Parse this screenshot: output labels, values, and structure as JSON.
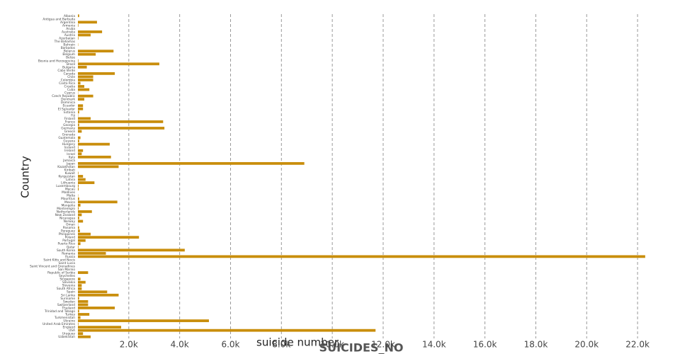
{
  "chart_data": {
    "type": "bar",
    "orientation": "horizontal",
    "x_label": "suicide number",
    "y_label": "Country",
    "annotation": "SUICIDES_NO",
    "color": "#c98e0c",
    "grid": true,
    "categories": [
      "Albania",
      "Antigua and Barbuda",
      "Argentina",
      "Armenia",
      "Aruba",
      "Australia",
      "Austria",
      "Azerbaijan",
      "The Bahamas",
      "Bahrain",
      "Barbados",
      "Belarus",
      "Belgium",
      "Belize",
      "Bosnia and Herzegovina",
      "Brazil",
      "Bulgaria",
      "Cabo Verde",
      "Canada",
      "Chile",
      "Colombia",
      "Costa Rica",
      "Croatia",
      "Cuba",
      "Cyprus",
      "Czech Republic",
      "Denmark",
      "Dominica",
      "Ecuador",
      "El Salvador",
      "Estonia",
      "Fiji",
      "Finland",
      "France",
      "Georgia",
      "Germany",
      "Greece",
      "Grenada",
      "Guatemala",
      "Guyana",
      "Hungary",
      "Iceland",
      "Ireland",
      "Israel",
      "Italy",
      "Jamaica",
      "Japan",
      "Kazakhstan",
      "Kiribati",
      "Kuwait",
      "Kyrgyzstan",
      "Latvia",
      "Lithuania",
      "Luxembourg",
      "Macau",
      "Maldives",
      "Malta",
      "Mauritius",
      "Mexico",
      "Mongolia",
      "Montenegro",
      "Netherlands",
      "New Zealand",
      "Nicaragua",
      "Norway",
      "Oman",
      "Panama",
      "Paraguay",
      "Philippines",
      "Poland",
      "Portugal",
      "Puerto Rico",
      "Qatar",
      "South Korea",
      "Romania",
      "Russia",
      "Saint Kitts and Nevis",
      "Saint Lucia",
      "Saint Vincent and Grenadines",
      "San Marino",
      "Republic of Serbia",
      "Seychelles",
      "Singapore",
      "Slovakia",
      "Slovenia",
      "South Africa",
      "Spain",
      "Sri Lanka",
      "Suriname",
      "Sweden",
      "Switzerland",
      "Thailand",
      "Trinidad and Tobago",
      "Turkey",
      "Turkmenistan",
      "Ukraine",
      "United Arab Emirates",
      "England",
      "USA",
      "Uruguay",
      "Uzbekistan"
    ],
    "values": [
      50,
      0,
      750,
      20,
      0,
      950,
      500,
      20,
      0,
      10,
      0,
      1400,
      700,
      0,
      20,
      3200,
      350,
      0,
      1450,
      600,
      600,
      100,
      250,
      450,
      10,
      600,
      250,
      0,
      200,
      200,
      50,
      10,
      500,
      3350,
      50,
      3400,
      150,
      0,
      100,
      50,
      1250,
      20,
      200,
      150,
      1300,
      0,
      8900,
      1600,
      0,
      20,
      200,
      300,
      650,
      30,
      30,
      0,
      10,
      50,
      1550,
      100,
      30,
      550,
      150,
      50,
      200,
      10,
      50,
      80,
      500,
      2400,
      300,
      100,
      20,
      4200,
      1100,
      22300,
      0,
      0,
      0,
      0,
      400,
      0,
      100,
      300,
      150,
      150,
      1150,
      1600,
      50,
      400,
      400,
      1450,
      50,
      450,
      100,
      5150,
      20,
      1700,
      11700,
      200,
      500
    ],
    "xlim": [
      0,
      23000
    ],
    "xticks": [
      {
        "value": 2000,
        "label": "2.0k"
      },
      {
        "value": 4000,
        "label": "4.0k"
      },
      {
        "value": 6000,
        "label": "6.0k"
      },
      {
        "value": 8000,
        "label": "8.0k"
      },
      {
        "value": 10000,
        "label": "10.0k"
      },
      {
        "value": 12000,
        "label": "12.0k"
      },
      {
        "value": 14000,
        "label": "14.0k"
      },
      {
        "value": 16000,
        "label": "16.0k"
      },
      {
        "value": 18000,
        "label": "18.0k"
      },
      {
        "value": 20000,
        "label": "20.0k"
      },
      {
        "value": 22000,
        "label": "22.0k"
      }
    ]
  }
}
